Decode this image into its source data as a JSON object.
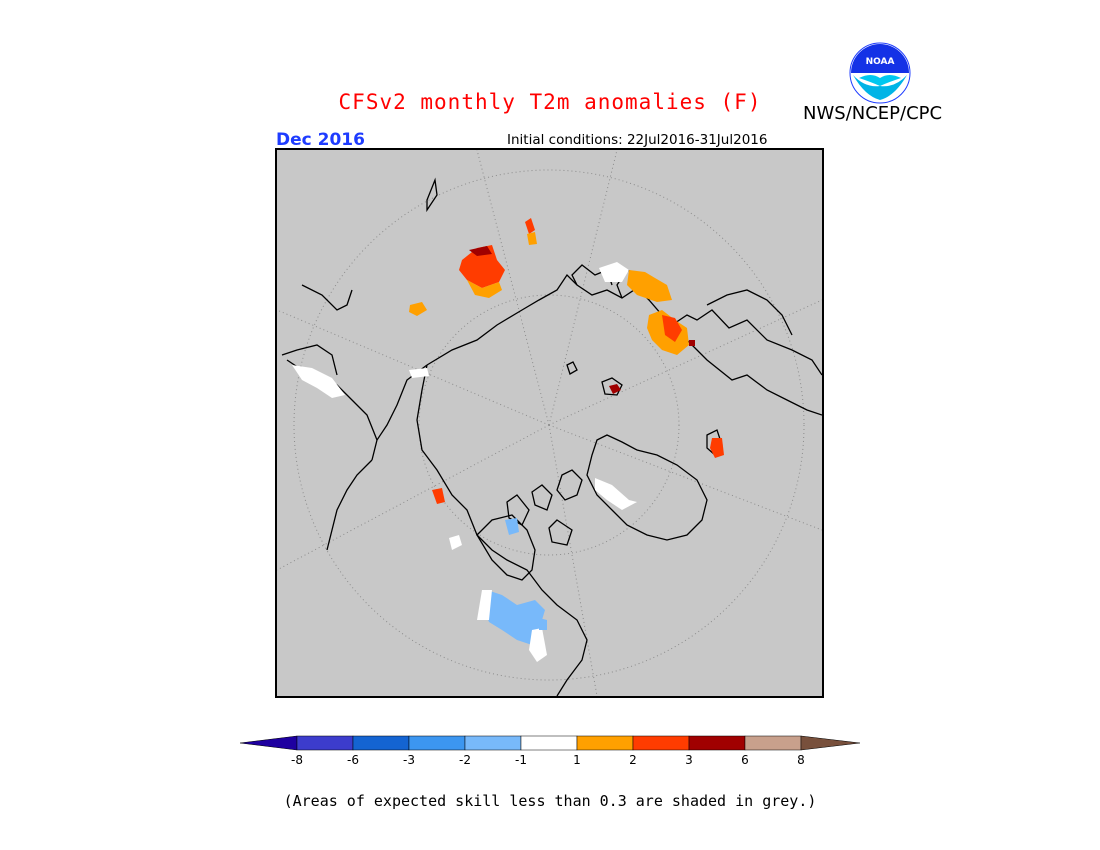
{
  "header": {
    "title": "CFSv2 monthly T2m anomalies (F)",
    "agency": "NWS/NCEP/CPC",
    "period": "Dec 2016",
    "initial_conditions": "Initial conditions: 22Jul2016-31Jul2016",
    "logo_text": "NOAA"
  },
  "legend": {
    "ticks": [
      "-8",
      "-6",
      "-3",
      "-2",
      "-1",
      "1",
      "2",
      "3",
      "6",
      "8"
    ],
    "bins": [
      {
        "range": "< -8",
        "color": "#1e00a0"
      },
      {
        "range": "-8 to -6",
        "color": "#3c3ccc"
      },
      {
        "range": "-6 to -3",
        "color": "#1464d2"
      },
      {
        "range": "-3 to -2",
        "color": "#3c96f0"
      },
      {
        "range": "-2 to -1",
        "color": "#78b9fa"
      },
      {
        "range": "-1 to 1",
        "color": "#ffffff"
      },
      {
        "range": "1 to 2",
        "color": "#ffa000"
      },
      {
        "range": "2 to 3",
        "color": "#ff3c00"
      },
      {
        "range": "3 to 6",
        "color": "#a00000"
      },
      {
        "range": "6 to 8",
        "color": "#c8a08c"
      },
      {
        "range": "> 8",
        "color": "#78503c"
      }
    ]
  },
  "map": {
    "projection": "north polar stereographic",
    "background_color": "#c8c8c8",
    "anomaly_regions": [
      {
        "region": "North Atlantic / Iceland area",
        "category": "2 to 3"
      },
      {
        "region": "Scandinavia / Barents coast",
        "category": "1 to 2"
      },
      {
        "region": "Western Siberia",
        "category": "2 to 3"
      },
      {
        "region": "Northeastern Canada / Hudson Bay",
        "category": "-2 to -1"
      },
      {
        "region": "Alaska interior",
        "category": "2 to 3"
      }
    ]
  },
  "footnote": "(Areas of expected skill less than 0.3 are shaded in grey.)",
  "colors": {
    "title": "#ff0000",
    "period": "#1e3cff"
  }
}
